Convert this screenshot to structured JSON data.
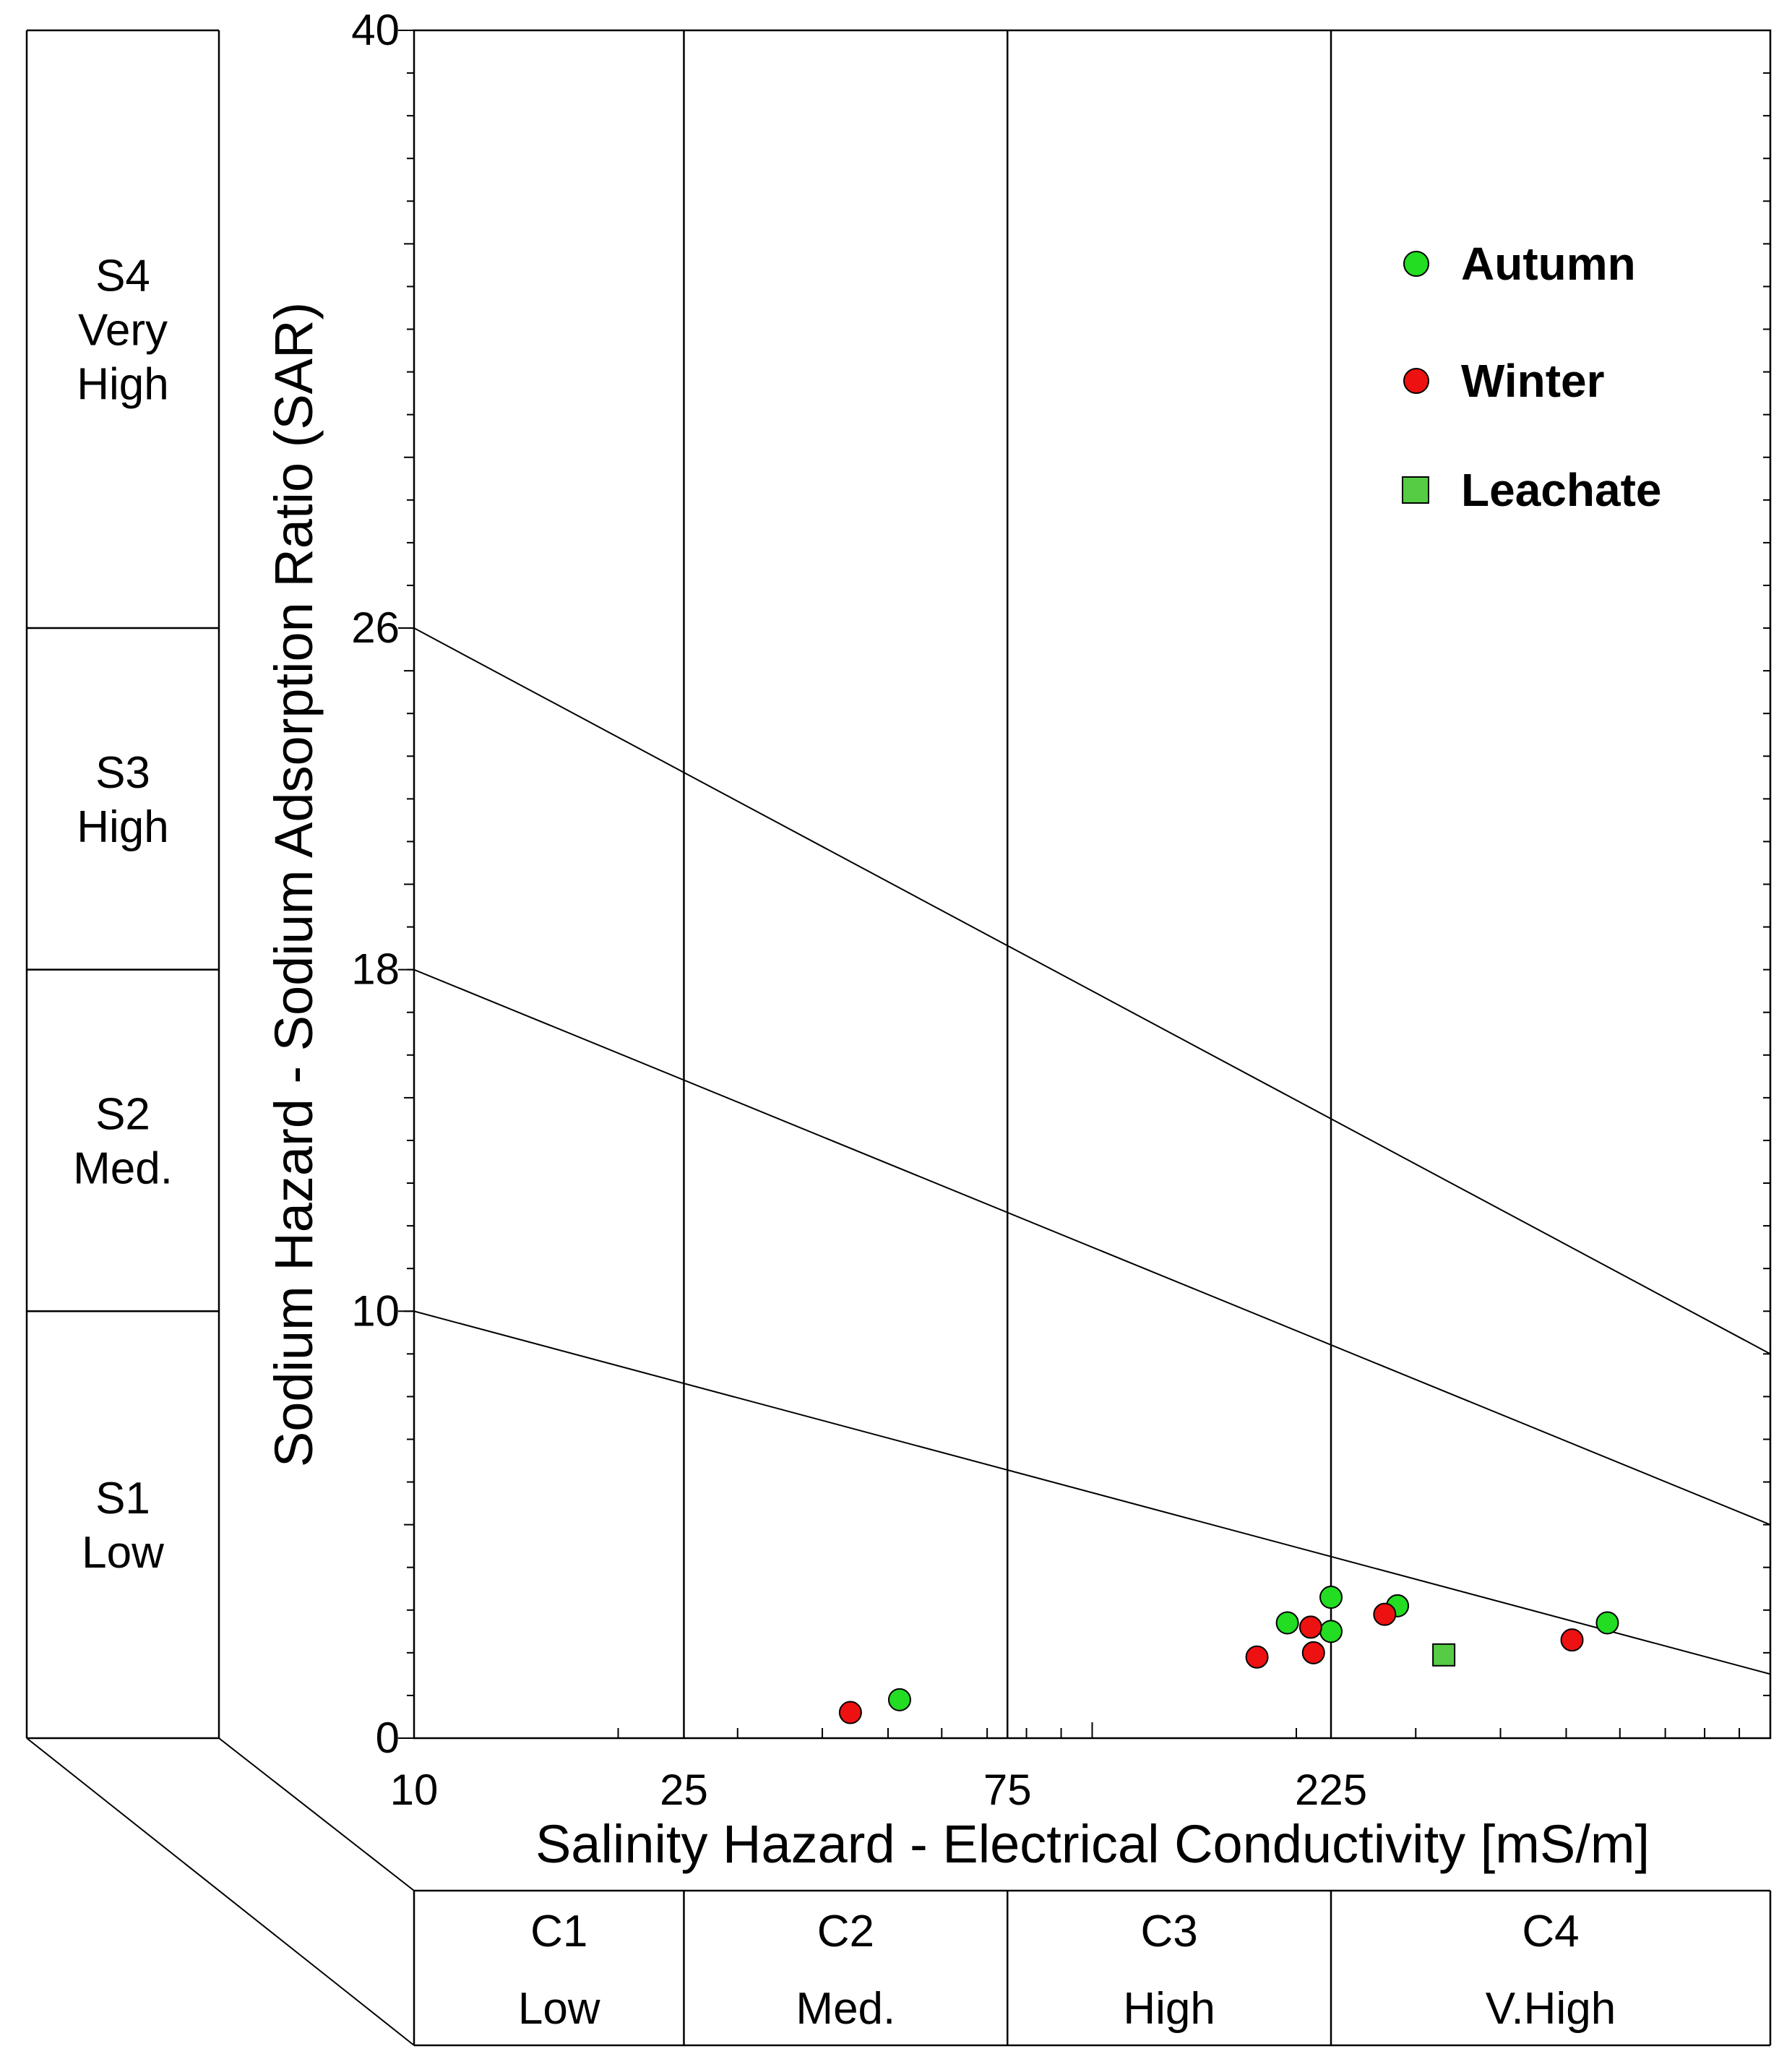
{
  "chart_data": {
    "type": "scatter",
    "title": "",
    "xlabel": "Salinity Hazard - Electrical Conductivity [mS/m]",
    "ylabel": "Sodium Hazard - Sodium Adsorption Ratio (SAR)",
    "x_scale": "log",
    "xlim": [
      10,
      1000
    ],
    "ylim": [
      0,
      40
    ],
    "x_ticks": [
      {
        "value": 10,
        "label": "10"
      },
      {
        "value": 25,
        "label": "25"
      },
      {
        "value": 75,
        "label": "75"
      },
      {
        "value": 225,
        "label": "225"
      }
    ],
    "y_ticks": [
      {
        "value": 0,
        "label": "0"
      },
      {
        "value": 10,
        "label": "10"
      },
      {
        "value": 18,
        "label": "18"
      },
      {
        "value": 26,
        "label": "26"
      },
      {
        "value": 40,
        "label": "40"
      }
    ],
    "boundaries": [
      {
        "x": [
          10,
          1000
        ],
        "y": [
          10,
          1.5
        ]
      },
      {
        "x": [
          10,
          1000
        ],
        "y": [
          18,
          5
        ]
      },
      {
        "x": [
          10,
          1000
        ],
        "y": [
          26,
          9
        ]
      }
    ],
    "salinity_classes": [
      {
        "code": "C1",
        "name": "Low",
        "from": 10,
        "to": 25
      },
      {
        "code": "C2",
        "name": "Med.",
        "from": 25,
        "to": 75
      },
      {
        "code": "C3",
        "name": "High",
        "from": 75,
        "to": 225
      },
      {
        "code": "C4",
        "name": "V.High",
        "from": 225,
        "to": 1000
      }
    ],
    "sodium_classes": [
      {
        "code": "S4",
        "name": "Very High",
        "from": 26,
        "to": 40
      },
      {
        "code": "S3",
        "name": "High",
        "from": 18,
        "to": 26
      },
      {
        "code": "S2",
        "name": "Med.",
        "from": 10,
        "to": 18
      },
      {
        "code": "S1",
        "name": "Low",
        "from": 0,
        "to": 10
      }
    ],
    "series": [
      {
        "name": "Autumn",
        "marker": "circle",
        "color": "#22dd22",
        "points": [
          [
            52,
            0.9
          ],
          [
            194,
            2.7
          ],
          [
            225,
            3.3
          ],
          [
            225,
            2.5
          ],
          [
            282,
            3.1
          ],
          [
            575,
            2.7
          ]
        ]
      },
      {
        "name": "Winter",
        "marker": "circle",
        "color": "#ee1111",
        "points": [
          [
            44,
            0.6
          ],
          [
            175,
            1.9
          ],
          [
            210,
            2.6
          ],
          [
            212,
            2.0
          ],
          [
            270,
            2.9
          ],
          [
            510,
            2.3
          ]
        ]
      },
      {
        "name": "Leachate",
        "marker": "square",
        "color": "#55cc44",
        "points": [
          [
            330,
            1.95
          ]
        ]
      }
    ],
    "legend_position": "top-right"
  }
}
